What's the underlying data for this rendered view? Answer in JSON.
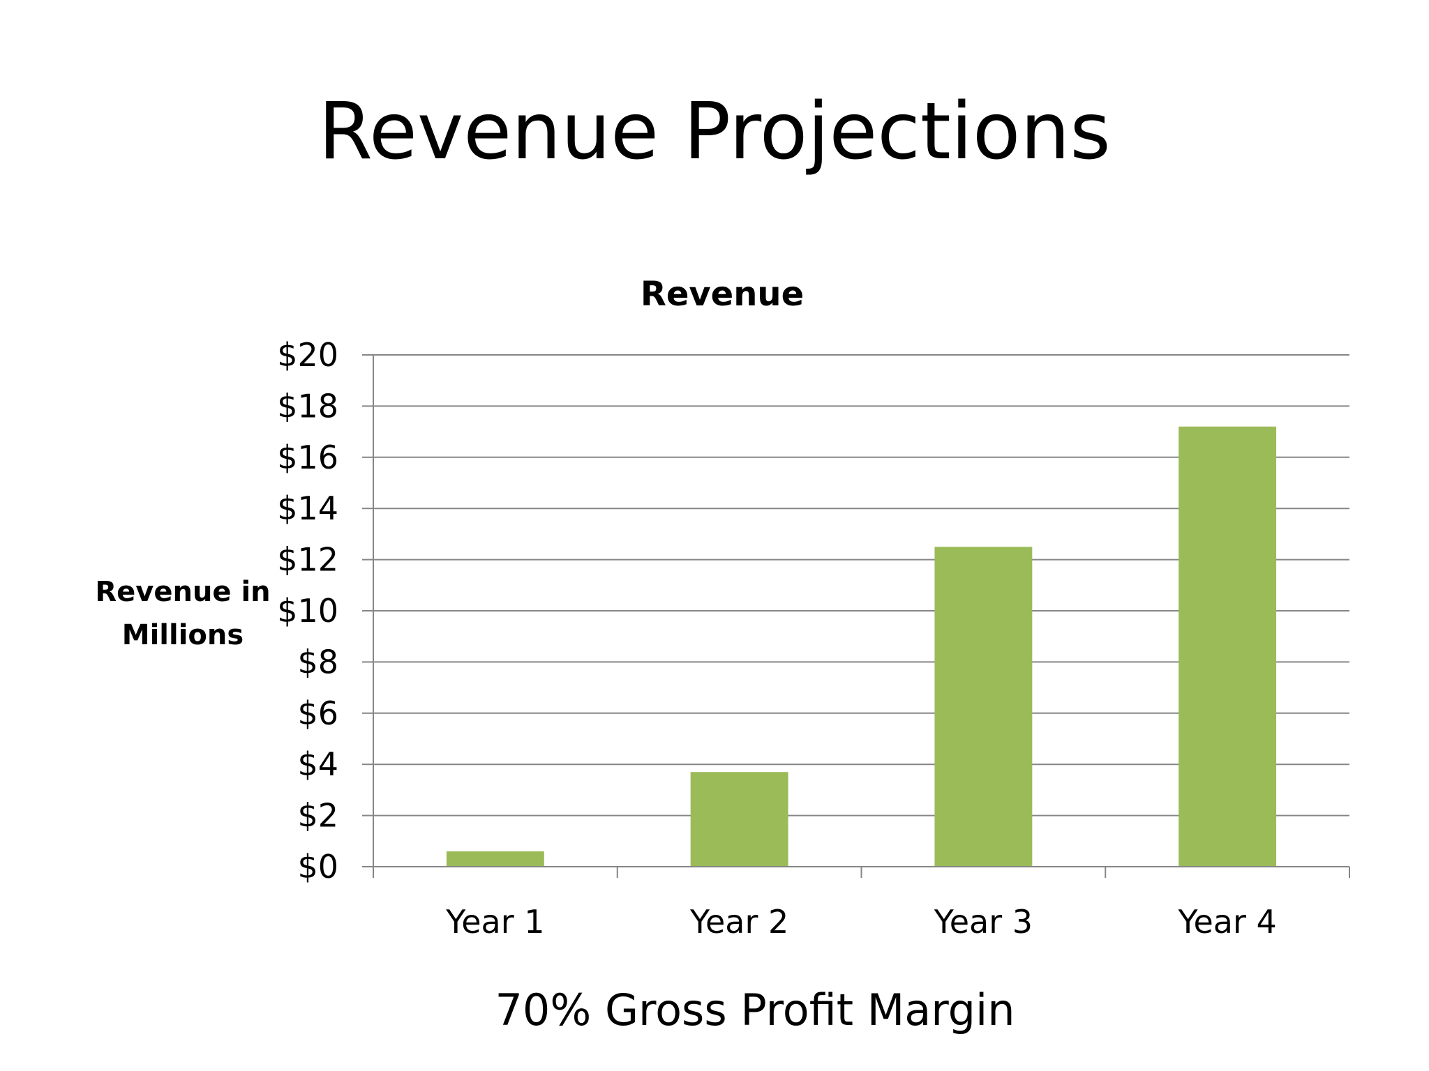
{
  "slide": {
    "title": "Revenue Projections",
    "footer": "70% Gross Profit Margin"
  },
  "colors": {
    "bar": "#9BBB59",
    "grid": "#868686",
    "text": "#000000"
  },
  "chart_data": {
    "type": "bar",
    "title": "Revenue",
    "xlabel": "",
    "ylabel_lines": [
      "Revenue in",
      "Millions"
    ],
    "categories": [
      "Year 1",
      "Year 2",
      "Year 3",
      "Year 4"
    ],
    "values": [
      0.6,
      3.7,
      12.5,
      17.2
    ],
    "ylim": [
      0,
      20
    ],
    "ytick_step": 2,
    "ytick_labels": [
      "$0",
      "$2",
      "$4",
      "$6",
      "$8",
      "$10",
      "$12",
      "$14",
      "$16",
      "$18",
      "$20"
    ],
    "grid": true,
    "legend": "none"
  }
}
